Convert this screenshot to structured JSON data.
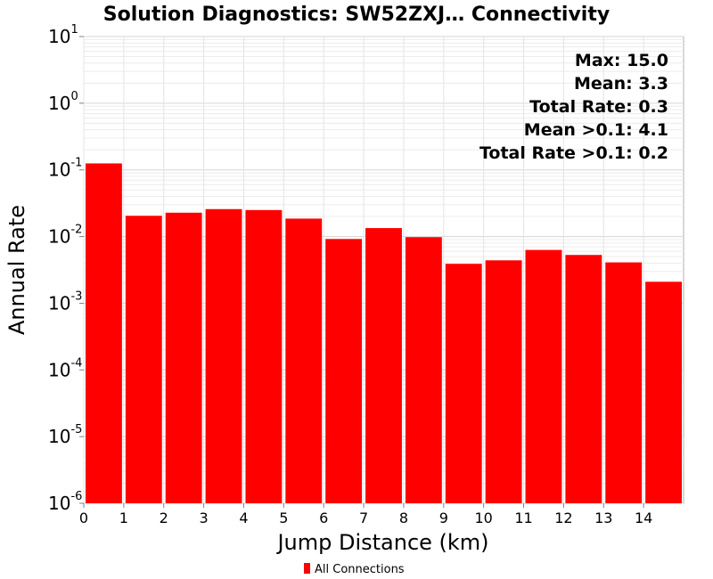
{
  "chart_data": {
    "type": "bar",
    "title": "Solution Diagnostics: SW52ZXJ… Connectivity",
    "xlabel": "Jump Distance (km)",
    "ylabel": "Annual Rate",
    "x_bin_edges": [
      0,
      1,
      2,
      3,
      4,
      5,
      6,
      7,
      8,
      9,
      10,
      11,
      12,
      13,
      14,
      15
    ],
    "x_ticks": [
      0,
      1,
      2,
      3,
      4,
      5,
      6,
      7,
      8,
      9,
      10,
      11,
      12,
      13,
      14
    ],
    "xlim": [
      0,
      15
    ],
    "y_scale": "log",
    "ylim": [
      1e-06,
      10
    ],
    "y_ticks": [
      {
        "base": "10",
        "exp": "1",
        "value": 10
      },
      {
        "base": "10",
        "exp": "0",
        "value": 1
      },
      {
        "base": "10",
        "exp": "-1",
        "value": 0.1
      },
      {
        "base": "10",
        "exp": "-2",
        "value": 0.01
      },
      {
        "base": "10",
        "exp": "-3",
        "value": 0.001
      },
      {
        "base": "10",
        "exp": "-4",
        "value": 0.0001
      },
      {
        "base": "10",
        "exp": "-5",
        "value": 1e-05
      },
      {
        "base": "10",
        "exp": "-6",
        "value": 1e-06
      }
    ],
    "grid": true,
    "series": [
      {
        "name": "All Connections",
        "color": "#ff0000",
        "values": [
          0.125,
          0.0205,
          0.0228,
          0.0258,
          0.025,
          0.0186,
          0.0092,
          0.0134,
          0.0098,
          0.0039,
          0.0044,
          0.0063,
          0.0053,
          0.0041,
          0.0021
        ]
      }
    ],
    "annotations": [
      "Max: 15.0",
      "Mean: 3.3",
      "Total Rate: 0.3",
      "Mean >0.1: 4.1",
      "Total Rate >0.1: 0.2"
    ],
    "annotation_placement": "top-right",
    "legend_placement": "bottom-center"
  }
}
